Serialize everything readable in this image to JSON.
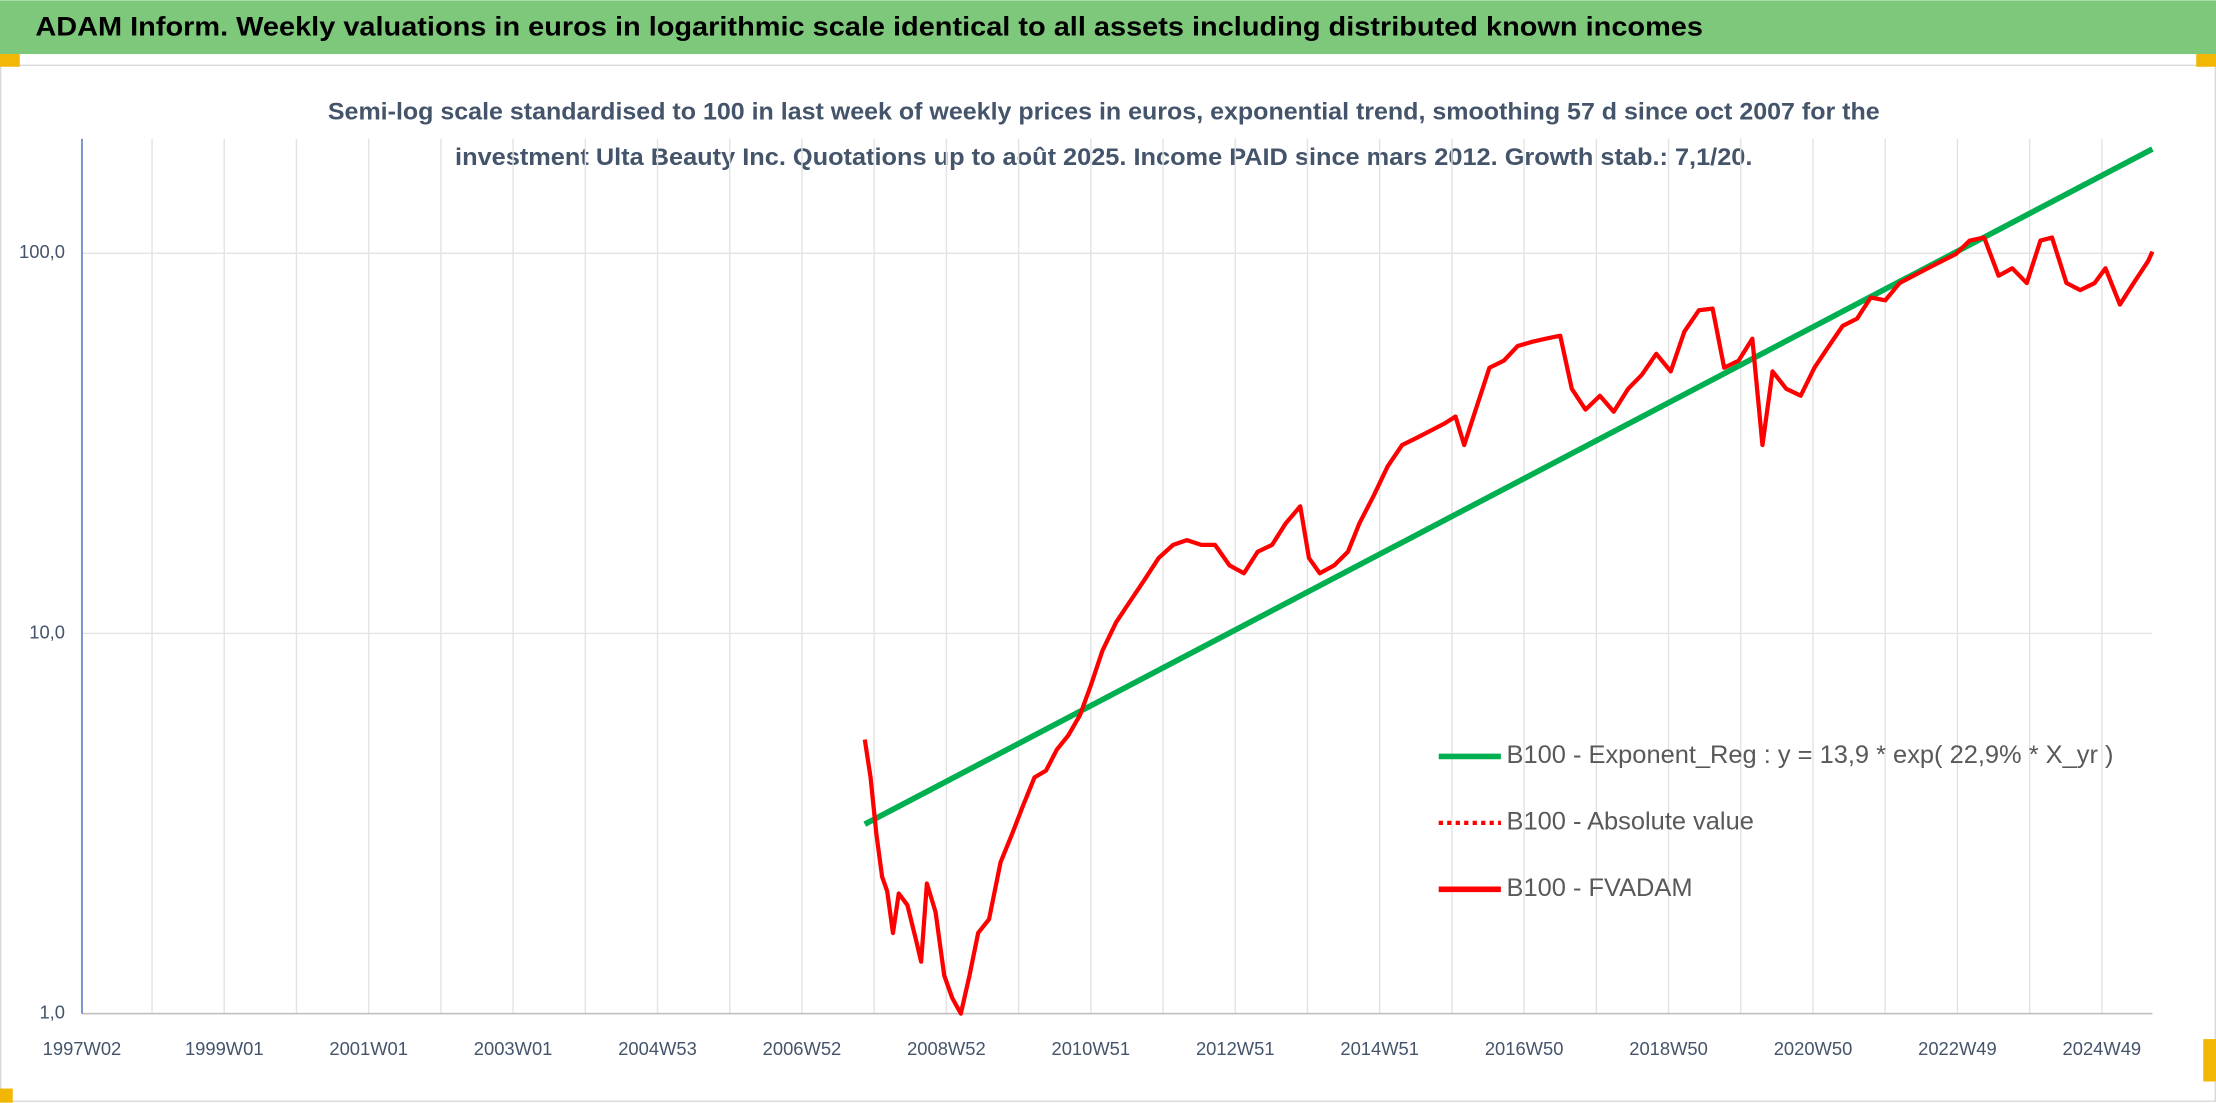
{
  "header": {
    "title": "ADAM Inform. Weekly valuations in euros in logarithmic scale identical to all assets including distributed known incomes"
  },
  "chart_data": {
    "type": "line",
    "title_lines": [
      "Semi-log scale standardised to 100 in last week of weekly prices in euros, exponential trend, smoothing 57 d since oct 2007 for the",
      "investment Ulta Beauty Inc. Quotations up to août 2025. Income PAID since mars 2012. Growth stab.: 7,1/20."
    ],
    "log_y": true,
    "grid": true,
    "legend": "right",
    "xlim": [
      1997.03,
      2025.7
    ],
    "xticks": [
      {
        "value": 1997.03,
        "label": "1997W02"
      },
      {
        "value": 1999.0,
        "label": "1999W01"
      },
      {
        "value": 2001.0,
        "label": "2001W01"
      },
      {
        "value": 2003.0,
        "label": "2003W01"
      },
      {
        "value": 2005.0,
        "label": "2004W53"
      },
      {
        "value": 2007.0,
        "label": "2006W52"
      },
      {
        "value": 2009.0,
        "label": "2008W52"
      },
      {
        "value": 2011.0,
        "label": "2010W51"
      },
      {
        "value": 2013.0,
        "label": "2012W51"
      },
      {
        "value": 2015.0,
        "label": "2014W51"
      },
      {
        "value": 2017.0,
        "label": "2016W50"
      },
      {
        "value": 2019.0,
        "label": "2018W50"
      },
      {
        "value": 2021.0,
        "label": "2020W50"
      },
      {
        "value": 2023.0,
        "label": "2022W49"
      },
      {
        "value": 2025.0,
        "label": "2024W49"
      }
    ],
    "xgrid": [
      1998,
      2000,
      2002,
      2004,
      2006,
      2008,
      2010,
      2012,
      2014,
      2016,
      2018,
      2020,
      2022,
      2024
    ],
    "ylim": [
      1,
      200
    ],
    "yticks": [
      {
        "value": 1,
        "label": "1,0"
      },
      {
        "value": 10,
        "label": "10,0"
      },
      {
        "value": 100,
        "label": "100,0"
      }
    ],
    "series": [
      {
        "name": "B100 - Exponent_Reg : y = 13,9 * exp( 22,9% *  X_yr )",
        "color": "#00b050",
        "dash": "solid",
        "x": [
          2007.87,
          2025.7
        ],
        "values": [
          3.15,
          188
        ]
      },
      {
        "name": "B100 - Absolute value",
        "color": "#ff0000",
        "dash": "dotted",
        "x": [],
        "values": []
      },
      {
        "name": "B100 - FVADAM",
        "color": "#ff0000",
        "dash": "solid",
        "x": [
          2007.87,
          2007.95,
          2008.03,
          2008.11,
          2008.18,
          2008.26,
          2008.34,
          2008.46,
          2008.58,
          2008.65,
          2008.73,
          2008.85,
          2008.97,
          2009.08,
          2009.2,
          2009.32,
          2009.44,
          2009.59,
          2009.75,
          2009.91,
          2010.06,
          2010.22,
          2010.38,
          2010.53,
          2010.69,
          2010.85,
          2011.0,
          2011.16,
          2011.35,
          2011.55,
          2011.75,
          2011.94,
          2012.14,
          2012.33,
          2012.53,
          2012.72,
          2012.92,
          2013.12,
          2013.31,
          2013.51,
          2013.7,
          2013.9,
          2014.02,
          2014.17,
          2014.37,
          2014.56,
          2014.72,
          2014.92,
          2015.11,
          2015.31,
          2015.5,
          2015.7,
          2015.89,
          2016.05,
          2016.17,
          2016.33,
          2016.52,
          2016.72,
          2016.91,
          2017.11,
          2017.3,
          2017.5,
          2017.66,
          2017.85,
          2018.05,
          2018.24,
          2018.44,
          2018.63,
          2018.83,
          2019.03,
          2019.22,
          2019.42,
          2019.61,
          2019.77,
          2019.97,
          2020.16,
          2020.3,
          2020.44,
          2020.63,
          2020.83,
          2021.02,
          2021.22,
          2021.41,
          2021.61,
          2021.8,
          2022.0,
          2022.2,
          2022.39,
          2022.59,
          2022.78,
          2022.98,
          2023.17,
          2023.37,
          2023.57,
          2023.76,
          2023.96,
          2024.15,
          2024.31,
          2024.51,
          2024.7,
          2024.9,
          2025.05,
          2025.25,
          2025.44,
          2025.64,
          2025.7
        ],
        "values": [
          5.26,
          4.18,
          2.97,
          2.29,
          2.1,
          1.63,
          2.07,
          1.93,
          1.56,
          1.37,
          2.2,
          1.85,
          1.26,
          1.1,
          1.0,
          1.26,
          1.63,
          1.77,
          2.5,
          2.97,
          3.52,
          4.18,
          4.36,
          4.95,
          5.4,
          6.1,
          7.3,
          9.0,
          10.7,
          12.2,
          13.9,
          15.8,
          17.1,
          17.6,
          17.1,
          17.1,
          15.1,
          14.4,
          16.4,
          17.1,
          19.5,
          21.6,
          15.8,
          14.4,
          15.1,
          16.4,
          19.5,
          23.1,
          27.5,
          31.3,
          32.6,
          34.1,
          35.6,
          37.2,
          31.3,
          38.8,
          50.0,
          52.2,
          57.0,
          58.5,
          59.6,
          60.7,
          44,
          38.8,
          42.2,
          38.3,
          44,
          47.9,
          54.4,
          48.9,
          62.3,
          70.8,
          71.5,
          50.0,
          52.2,
          59.6,
          31.3,
          48.9,
          44,
          42.2,
          50.0,
          57.0,
          64.4,
          67.3,
          76.5,
          75.2,
          83.5,
          87.3,
          91.3,
          95.3,
          99.6,
          108,
          110,
          87.3,
          91.3,
          83.5,
          108,
          110,
          83.5,
          80,
          83.5,
          91.3,
          73.3,
          83.5,
          95.3,
          101
        ]
      }
    ]
  }
}
